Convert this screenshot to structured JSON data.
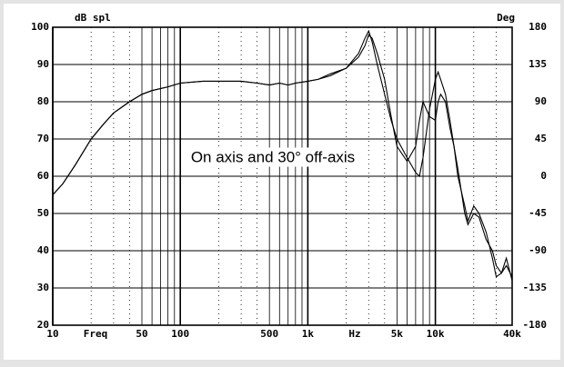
{
  "chart_data": {
    "type": "line",
    "y_label": "dB spl",
    "y2_label": "Deg",
    "x_label": "Freq",
    "x_unit": "Hz",
    "annotation": "On axis and 30° off-axis",
    "log_x": true,
    "grid": true,
    "xlim": [
      10,
      40000
    ],
    "ylim": [
      20,
      100
    ],
    "y2lim": [
      -180,
      180
    ],
    "xticks": [
      10,
      50,
      100,
      500,
      {
        "value": 1000,
        "label": "1k"
      },
      {
        "value": 5000,
        "label": "5k"
      },
      {
        "value": 10000,
        "label": "10k"
      },
      {
        "value": 40000,
        "label": "40k"
      }
    ],
    "xgrid": [
      10,
      20,
      30,
      40,
      50,
      60,
      70,
      80,
      90,
      100,
      200,
      300,
      400,
      500,
      600,
      700,
      800,
      900,
      1000,
      2000,
      3000,
      4000,
      5000,
      6000,
      7000,
      8000,
      9000,
      10000,
      20000,
      30000,
      40000
    ],
    "yticks": [
      20,
      30,
      40,
      50,
      60,
      70,
      80,
      90,
      100
    ],
    "y2ticks": [
      -180,
      -135,
      -90,
      -45,
      0,
      45,
      90,
      135,
      180
    ],
    "x": [
      10,
      12,
      15,
      20,
      25,
      30,
      40,
      50,
      60,
      80,
      100,
      150,
      200,
      300,
      400,
      500,
      600,
      700,
      800,
      1000,
      1200,
      1500,
      2000,
      2500,
      2800,
      3000,
      3200,
      3500,
      4000,
      4500,
      5000,
      6000,
      7000,
      7500,
      8000,
      9000,
      10000,
      10500,
      11000,
      12000,
      13000,
      14000,
      15000,
      17000,
      18000,
      20000,
      22000,
      25000,
      28000,
      30000,
      33000,
      36000,
      40000
    ],
    "series": [
      {
        "name": "On axis",
        "color": "#000000",
        "values": [
          55,
          58,
          63,
          70,
          74,
          77,
          80,
          82,
          83,
          84,
          85,
          85.5,
          85.5,
          85.5,
          85,
          84.5,
          85,
          84.5,
          85,
          85.5,
          86,
          87,
          89,
          93,
          97,
          99,
          96,
          90,
          82,
          75,
          70,
          65,
          61,
          60,
          65,
          78,
          86,
          88,
          86,
          82,
          75,
          68,
          60,
          52,
          48,
          52,
          50,
          45,
          38,
          33,
          34,
          36,
          33
        ]
      },
      {
        "name": "30° off-axis",
        "color": "#000000",
        "values": [
          55,
          58,
          63,
          70,
          74,
          77,
          80,
          82,
          83,
          84,
          85,
          85.5,
          85.5,
          85.5,
          85,
          84.5,
          85,
          84.5,
          85,
          85.5,
          86,
          87.5,
          89,
          92,
          95,
          98,
          97,
          93,
          86,
          76,
          68,
          64,
          68,
          75,
          80,
          76,
          75,
          80,
          82,
          80,
          73,
          68,
          62,
          50,
          47,
          50,
          49,
          43,
          40,
          36,
          34,
          38,
          32
        ]
      }
    ]
  }
}
